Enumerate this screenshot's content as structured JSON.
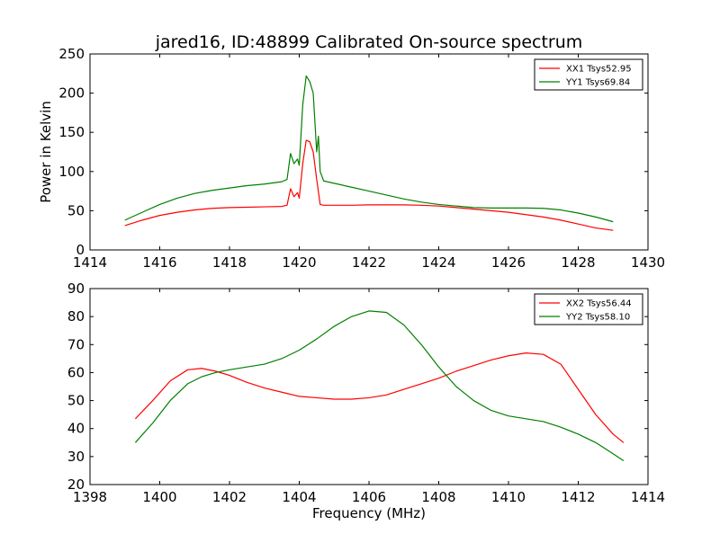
{
  "title": "jared16, ID:48899 Calibrated On-source spectrum",
  "chart_data": [
    {
      "type": "line",
      "xlabel": "",
      "ylabel": "Power in Kelvin",
      "xlim": [
        1414,
        1430
      ],
      "ylim": [
        0,
        250
      ],
      "xticks": [
        1414,
        1416,
        1418,
        1420,
        1422,
        1424,
        1426,
        1428,
        1430
      ],
      "yticks": [
        0,
        50,
        100,
        150,
        200,
        250
      ],
      "xtick_labels": [
        "1414",
        "1416",
        "1418",
        "1420",
        "1422",
        "1424",
        "1426",
        "1428",
        "1430"
      ],
      "ytick_labels": [
        "0",
        "50",
        "100",
        "150",
        "200",
        "250"
      ],
      "grid": false,
      "legend": "top-right",
      "series": [
        {
          "name": "XX1 Tsys52.95",
          "color": "#ff0000",
          "x": [
            1415.0,
            1415.5,
            1416.0,
            1416.5,
            1417.0,
            1417.5,
            1418.0,
            1418.5,
            1419.0,
            1419.5,
            1419.65,
            1419.75,
            1419.85,
            1419.95,
            1420.0,
            1420.1,
            1420.2,
            1420.3,
            1420.4,
            1420.5,
            1420.6,
            1420.7,
            1421.0,
            1421.5,
            1422.0,
            1422.5,
            1423.0,
            1423.5,
            1424.0,
            1424.5,
            1425.0,
            1425.5,
            1426.0,
            1426.5,
            1427.0,
            1427.5,
            1428.0,
            1428.5,
            1429.0
          ],
          "y": [
            31,
            38,
            44,
            48,
            51,
            53,
            54,
            54.5,
            55,
            55.5,
            57,
            78,
            68,
            73,
            66,
            110,
            140,
            138,
            125,
            90,
            58,
            57,
            57,
            57,
            57.5,
            57.5,
            57.5,
            57,
            56,
            54,
            52,
            50,
            48,
            45,
            42,
            38,
            33,
            28,
            25
          ]
        },
        {
          "name": "YY1 Tsys69.84",
          "color": "#008000",
          "x": [
            1415.0,
            1415.5,
            1416.0,
            1416.5,
            1417.0,
            1417.5,
            1418.0,
            1418.5,
            1419.0,
            1419.5,
            1419.65,
            1419.75,
            1419.85,
            1419.95,
            1420.0,
            1420.1,
            1420.2,
            1420.3,
            1420.4,
            1420.5,
            1420.55,
            1420.6,
            1420.7,
            1421.0,
            1421.5,
            1422.0,
            1422.5,
            1423.0,
            1423.5,
            1424.0,
            1424.5,
            1425.0,
            1425.5,
            1426.0,
            1426.5,
            1427.0,
            1427.5,
            1428.0,
            1428.5,
            1429.0
          ],
          "y": [
            38,
            48,
            58,
            66,
            72,
            76,
            79,
            82,
            84,
            87,
            90,
            123,
            110,
            116,
            108,
            185,
            222,
            215,
            200,
            125,
            145,
            100,
            88,
            85,
            80,
            75,
            70,
            65,
            61,
            58,
            56,
            54,
            53.5,
            53.5,
            53.5,
            53,
            51,
            47,
            42,
            36
          ]
        }
      ]
    },
    {
      "type": "line",
      "xlabel": "Frequency (MHz)",
      "ylabel": "",
      "xlim": [
        1398,
        1414
      ],
      "ylim": [
        20,
        90
      ],
      "xticks": [
        1398,
        1400,
        1402,
        1404,
        1406,
        1408,
        1410,
        1412,
        1414
      ],
      "yticks": [
        20,
        30,
        40,
        50,
        60,
        70,
        80,
        90
      ],
      "xtick_labels": [
        "1398",
        "1400",
        "1402",
        "1404",
        "1406",
        "1408",
        "1410",
        "1412",
        "1414"
      ],
      "ytick_labels": [
        "20",
        "30",
        "40",
        "50",
        "60",
        "70",
        "80",
        "90"
      ],
      "grid": false,
      "legend": "top-right",
      "series": [
        {
          "name": "XX2 Tsys56.44",
          "color": "#ff0000",
          "x": [
            1399.3,
            1399.8,
            1400.3,
            1400.8,
            1401.2,
            1401.6,
            1402.0,
            1402.5,
            1403.0,
            1403.5,
            1404.0,
            1404.5,
            1405.0,
            1405.5,
            1406.0,
            1406.5,
            1407.0,
            1407.5,
            1408.0,
            1408.5,
            1409.0,
            1409.5,
            1410.0,
            1410.5,
            1411.0,
            1411.5,
            1412.0,
            1412.5,
            1413.0,
            1413.3
          ],
          "y": [
            43.5,
            50,
            57,
            61,
            61.5,
            60.5,
            59,
            56.5,
            54.5,
            53,
            51.5,
            51,
            50.5,
            50.5,
            51,
            52,
            54,
            56,
            58,
            60.5,
            62.5,
            64.5,
            66,
            67,
            66.5,
            63,
            54,
            45,
            38,
            35
          ]
        },
        {
          "name": "YY2 Tsys58.10",
          "color": "#008000",
          "x": [
            1399.3,
            1399.8,
            1400.3,
            1400.8,
            1401.2,
            1401.6,
            1402.0,
            1402.5,
            1403.0,
            1403.5,
            1404.0,
            1404.5,
            1405.0,
            1405.5,
            1406.0,
            1406.5,
            1407.0,
            1407.5,
            1408.0,
            1408.5,
            1409.0,
            1409.5,
            1410.0,
            1410.5,
            1411.0,
            1411.5,
            1412.0,
            1412.5,
            1413.0,
            1413.3
          ],
          "y": [
            35,
            42,
            50,
            56,
            58.5,
            60,
            61,
            62,
            63,
            65,
            68,
            72,
            76.5,
            80,
            82,
            81.5,
            77,
            70,
            62,
            55,
            50,
            46.5,
            44.5,
            43.5,
            42.5,
            40.5,
            38,
            35,
            31,
            28.5
          ]
        }
      ]
    }
  ]
}
